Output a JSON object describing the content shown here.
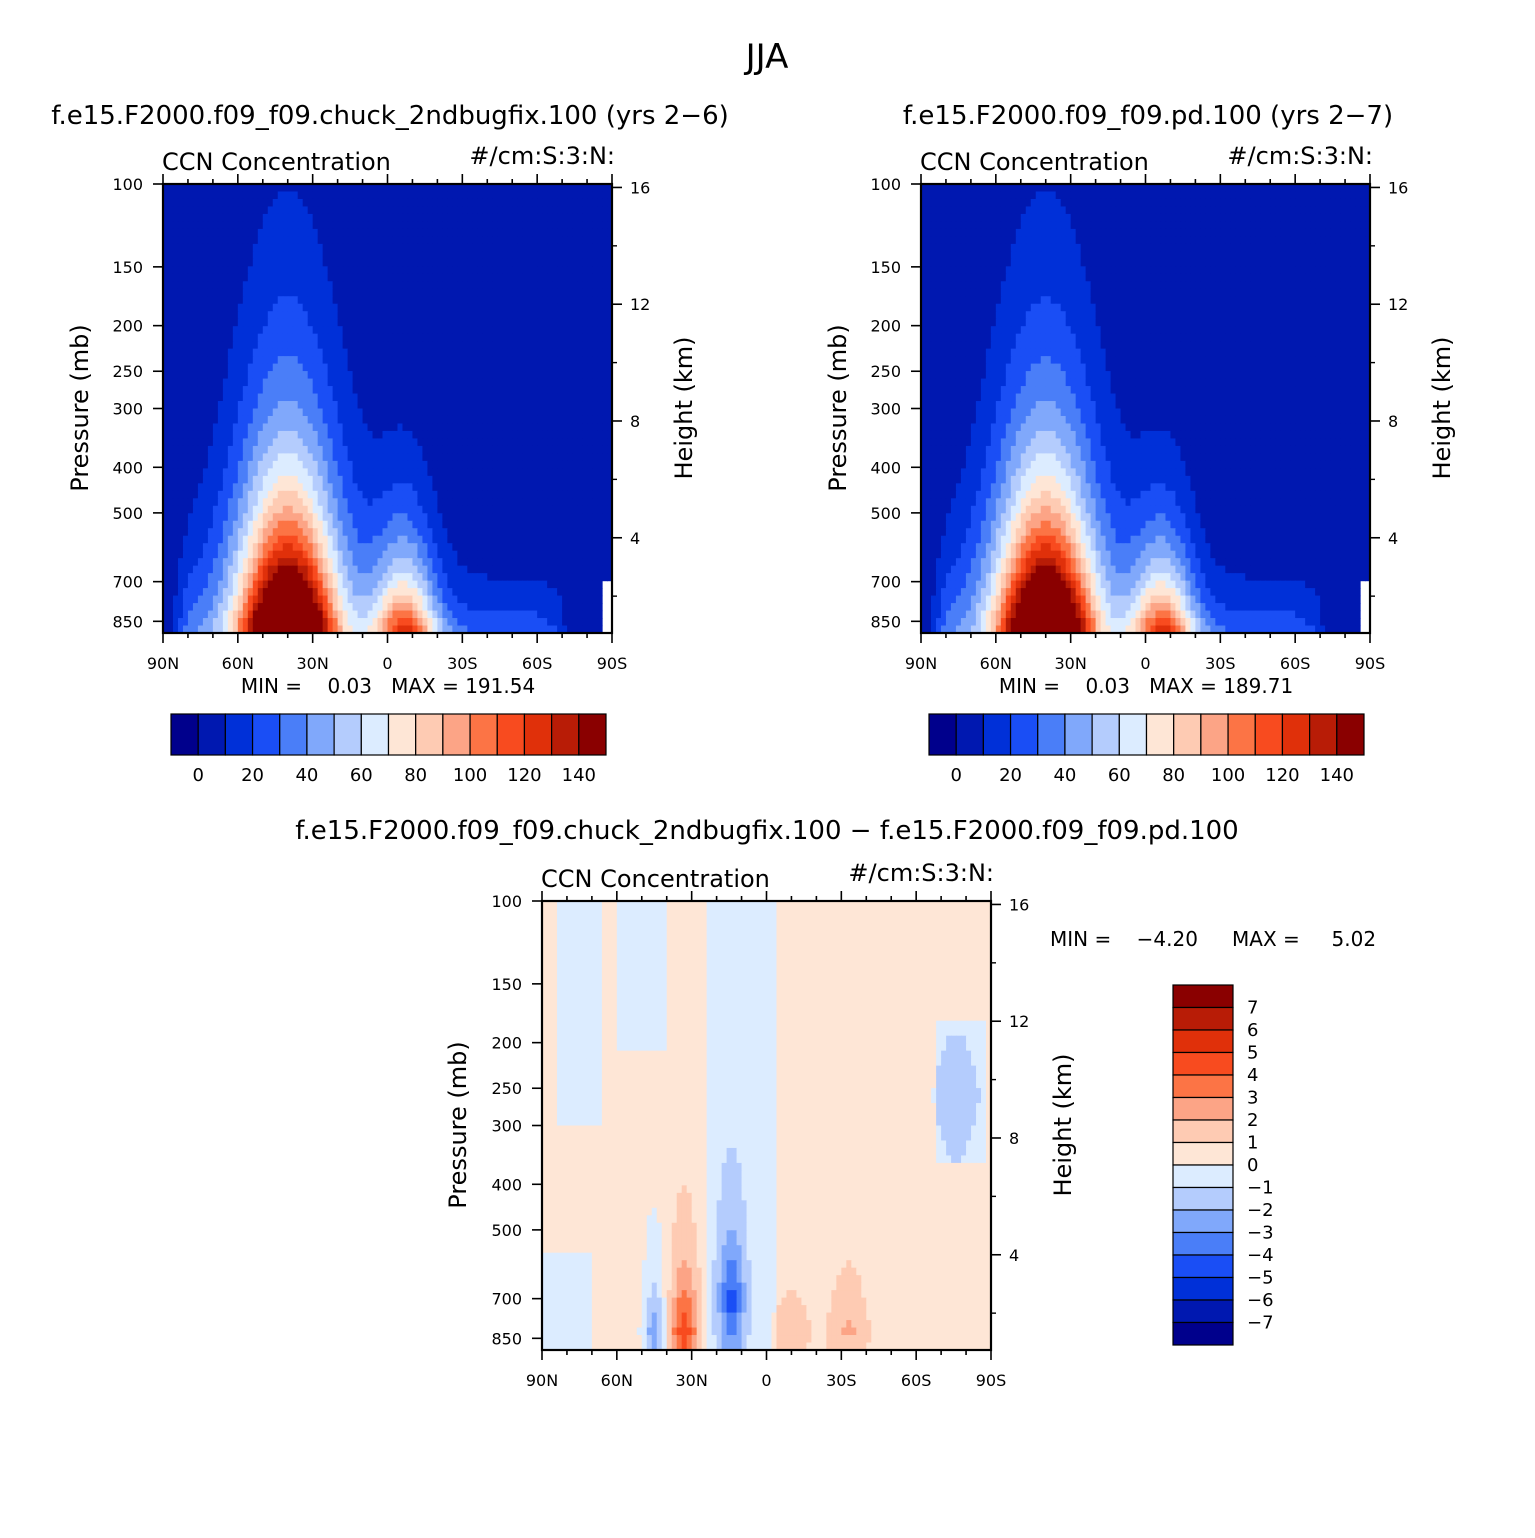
{
  "figure": {
    "super_title": "JJA",
    "diff_title": "f.e15.F2000.f09_f09.chuck_2ndbugfix.100 − f.e15.F2000.f09_f09.pd.100"
  },
  "colors": {
    "abs_levels": [
      "#00008c",
      "#0018b0",
      "#0030d8",
      "#1a4ef5",
      "#4a7ef8",
      "#80a8fb",
      "#b4ccfd",
      "#dcecff",
      "#fee6d6",
      "#fecbb3",
      "#fca486",
      "#fc7445",
      "#f84b1f",
      "#e0300a",
      "#b81c06",
      "#8a0000"
    ],
    "diff_levels": [
      "#00008c",
      "#0018b0",
      "#0030d8",
      "#1a4ef5",
      "#4a7ef8",
      "#80a8fb",
      "#b4ccfd",
      "#dcecff",
      "#fee6d6",
      "#fecbb3",
      "#fca486",
      "#fc7445",
      "#f84b1f",
      "#e0300a",
      "#b81c06",
      "#8a0000"
    ]
  },
  "chart_data": [
    {
      "type": "heatmap",
      "title": "f.e15.F2000.f09_f09.chuck_2ndbugfix.100 (yrs 2−6)",
      "left_string": "CCN Concentration",
      "right_string": "#/cm:S:3:N:",
      "xlabel": "",
      "ylabel": "Pressure (mb)",
      "y2label": "Height (km)",
      "x_ticks": [
        "90N",
        "60N",
        "30N",
        "0",
        "30S",
        "60S",
        "90S"
      ],
      "y_ticks": [
        "100",
        "150",
        "200",
        "250",
        "300",
        "400",
        "500",
        "700",
        "850"
      ],
      "y2_ticks": [
        "16",
        "12",
        "8",
        "4"
      ],
      "xlim": [
        90,
        -90
      ],
      "ylim": [
        900,
        100
      ],
      "y_scale": "log",
      "stats": "MIN =    0.03   MAX = 191.54",
      "colorbar": {
        "orientation": "horizontal",
        "labels": [
          "0",
          "20",
          "40",
          "60",
          "80",
          "100",
          "120",
          "140"
        ],
        "levels": [
          -10,
          0,
          10,
          20,
          30,
          40,
          50,
          60,
          70,
          80,
          90,
          100,
          110,
          120,
          130,
          140,
          150
        ]
      },
      "features": [
        {
          "lat": 40,
          "p": 870,
          "value": 190,
          "spread_lat": 13,
          "spread_p": 0.55
        },
        {
          "lat": -7,
          "p": 880,
          "value": 95,
          "spread_lat": 9,
          "spread_p": 0.4
        }
      ]
    },
    {
      "type": "heatmap",
      "title": "f.e15.F2000.f09_f09.pd.100 (yrs 2−7)",
      "left_string": "CCN Concentration",
      "right_string": "#/cm:S:3:N:",
      "xlabel": "",
      "ylabel": "Pressure (mb)",
      "y2label": "Height (km)",
      "x_ticks": [
        "90N",
        "60N",
        "30N",
        "0",
        "30S",
        "60S",
        "90S"
      ],
      "y_ticks": [
        "100",
        "150",
        "200",
        "250",
        "300",
        "400",
        "500",
        "700",
        "850"
      ],
      "y2_ticks": [
        "16",
        "12",
        "8",
        "4"
      ],
      "xlim": [
        90,
        -90
      ],
      "ylim": [
        900,
        100
      ],
      "y_scale": "log",
      "stats": "MIN =    0.03   MAX = 189.71",
      "colorbar": {
        "orientation": "horizontal",
        "labels": [
          "0",
          "20",
          "40",
          "60",
          "80",
          "100",
          "120",
          "140"
        ],
        "levels": [
          -10,
          0,
          10,
          20,
          30,
          40,
          50,
          60,
          70,
          80,
          90,
          100,
          110,
          120,
          130,
          140,
          150
        ]
      },
      "features": [
        {
          "lat": 40,
          "p": 870,
          "value": 188,
          "spread_lat": 13,
          "spread_p": 0.55
        },
        {
          "lat": -7,
          "p": 880,
          "value": 94,
          "spread_lat": 9,
          "spread_p": 0.4
        }
      ]
    },
    {
      "type": "heatmap",
      "title": "",
      "left_string": "CCN Concentration",
      "right_string": "#/cm:S:3:N:",
      "xlabel": "",
      "ylabel": "Pressure (mb)",
      "y2label": "Height (km)",
      "x_ticks": [
        "90N",
        "60N",
        "30N",
        "0",
        "30S",
        "60S",
        "90S"
      ],
      "y_ticks": [
        "100",
        "150",
        "200",
        "250",
        "300",
        "400",
        "500",
        "700",
        "850"
      ],
      "y2_ticks": [
        "16",
        "12",
        "8",
        "4"
      ],
      "xlim": [
        90,
        -90
      ],
      "ylim": [
        900,
        100
      ],
      "y_scale": "log",
      "stats_min": "MIN =    −4.20",
      "stats_max": "MAX =     5.02",
      "colorbar": {
        "orientation": "vertical",
        "labels": [
          "7",
          "6",
          "5",
          "4",
          "3",
          "2",
          "1",
          "0",
          "−1",
          "−2",
          "−3",
          "−4",
          "−5",
          "−6",
          "−7"
        ],
        "levels": [
          -8,
          -7,
          -6,
          -5,
          -4,
          -3,
          -2,
          -1,
          0,
          1,
          2,
          3,
          4,
          5,
          6,
          7,
          8
        ]
      },
      "features": [
        {
          "lat": 33,
          "p": 820,
          "value": 4.5,
          "spread_lat": 4,
          "spread_p": 0.35
        },
        {
          "lat": 45,
          "p": 820,
          "value": -3.2,
          "spread_lat": 3,
          "spread_p": 0.3
        },
        {
          "lat": 14,
          "p": 700,
          "value": -4.2,
          "spread_lat": 4,
          "spread_p": 0.35
        },
        {
          "lat": -33,
          "p": 820,
          "value": 1.8,
          "spread_lat": 6,
          "spread_p": 0.3
        },
        {
          "lat": -10,
          "p": 830,
          "value": 1.4,
          "spread_lat": 6,
          "spread_p": 0.25
        },
        {
          "lat": -76,
          "p": 260,
          "value": -0.8,
          "spread_lat": 8,
          "spread_p": 0.45
        }
      ]
    }
  ]
}
